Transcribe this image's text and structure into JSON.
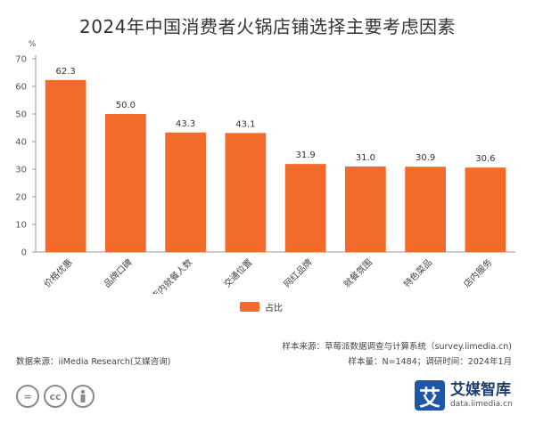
{
  "title": "2024年中国消费者火锅店铺选择主要考虑因素",
  "chart_data": {
    "type": "bar",
    "ylabel": "%",
    "ylim": [
      0,
      70
    ],
    "yticks": [
      0,
      10,
      20,
      30,
      40,
      50,
      60,
      70
    ],
    "categories": [
      "价格优惠",
      "品牌口碑",
      "店内就餐人数",
      "交通位置",
      "网红品牌",
      "就餐氛围",
      "特色菜品",
      "店内服务"
    ],
    "series": [
      {
        "name": "占比",
        "values": [
          62.3,
          50.0,
          43.3,
          43.1,
          31.9,
          31.0,
          30.9,
          30.6
        ],
        "color": "#f26b2a"
      }
    ],
    "data_labels": [
      "62.3",
      "50.0",
      "43.3",
      "43.1",
      "31.9",
      "31.0",
      "30.9",
      "30.6"
    ],
    "legend": "bottom-center",
    "grid": false
  },
  "legend_label": "占比",
  "footer": {
    "source": "数据来源：iiMedia Research(艾媒咨询)",
    "sample_source": "样本来源：草莓派数据调查与计算系统（survey.iimedia.cn)",
    "sample_size": "样本量：N=1484；调研时间：2024年1月"
  },
  "license_icons": [
    "=",
    "cc",
    "person"
  ],
  "brand": {
    "logo_char": "艾",
    "name": "艾媒智库",
    "url": "data.iimedia.cn"
  },
  "colors": {
    "bar": "#f26b2a",
    "axis": "#999999",
    "brand": "#1e56a8"
  }
}
